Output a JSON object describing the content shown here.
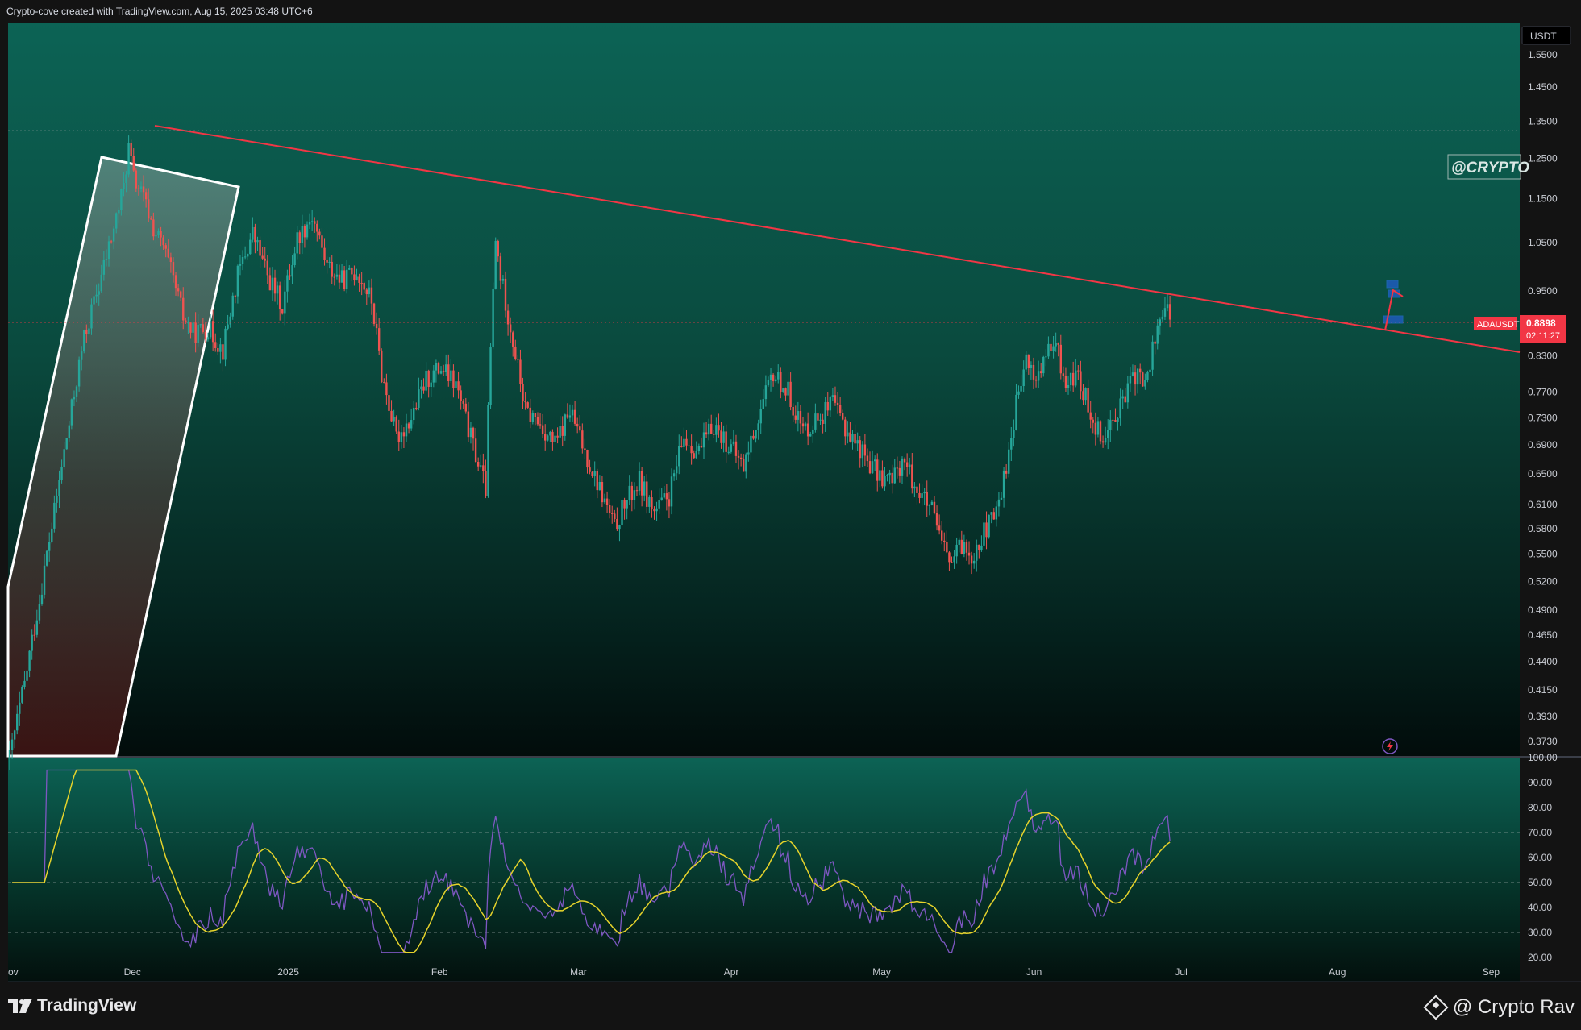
{
  "header": {
    "attribution": "Crypto-cove created with TradingView.com, Aug 15, 2025 03:48 UTC+6"
  },
  "footer": {
    "platform_logo_text": "TradingView",
    "author_text": "@ Crypto Rav"
  },
  "chart_data": [
    {
      "type": "candlestick",
      "symbol": "ADAUSDT",
      "currency_label": "USDT",
      "watermark": "@CRYPTO",
      "last_price": "0.8898",
      "countdown": "02:11:27",
      "y_tick_labels": [
        "1.5500",
        "1.4500",
        "1.3500",
        "1.2500",
        "1.1500",
        "1.0500",
        "0.9500",
        "0.8300",
        "0.7700",
        "0.7300",
        "0.6900",
        "0.6500",
        "0.6100",
        "0.5800",
        "0.5500",
        "0.5200",
        "0.4900",
        "0.4650",
        "0.4400",
        "0.4150",
        "0.3930",
        "0.3730"
      ],
      "x_tick_labels": [
        "ov",
        "Dec",
        "2025",
        "Feb",
        "Mar",
        "Apr",
        "May",
        "Jun",
        "Jul",
        "Aug",
        "Sep"
      ],
      "close_path": [
        [
          0,
          0.36
        ],
        [
          3,
          0.42
        ],
        [
          6,
          0.5
        ],
        [
          9,
          0.6
        ],
        [
          12,
          0.72
        ],
        [
          15,
          0.86
        ],
        [
          18,
          0.96
        ],
        [
          21,
          1.08
        ],
        [
          23,
          1.18
        ],
        [
          24,
          1.28
        ],
        [
          25,
          1.2
        ],
        [
          27,
          1.15
        ],
        [
          29,
          1.08
        ],
        [
          31,
          1.04
        ],
        [
          33,
          0.97
        ],
        [
          35,
          0.9
        ],
        [
          37,
          0.87
        ],
        [
          40,
          0.88
        ],
        [
          43,
          0.84
        ],
        [
          46,
          0.98
        ],
        [
          49,
          1.07
        ],
        [
          52,
          0.98
        ],
        [
          55,
          0.92
        ],
        [
          58,
          1.06
        ],
        [
          61,
          1.11
        ],
        [
          64,
          1.0
        ],
        [
          67,
          0.97
        ],
        [
          70,
          0.99
        ],
        [
          73,
          0.93
        ],
        [
          75,
          0.8
        ],
        [
          78,
          0.7
        ],
        [
          81,
          0.73
        ],
        [
          84,
          0.79
        ],
        [
          87,
          0.81
        ],
        [
          90,
          0.78
        ],
        [
          93,
          0.7
        ],
        [
          96,
          0.63
        ],
        [
          98,
          1.05
        ],
        [
          99,
          0.98
        ],
        [
          101,
          0.88
        ],
        [
          104,
          0.74
        ],
        [
          107,
          0.72
        ],
        [
          110,
          0.69
        ],
        [
          113,
          0.74
        ],
        [
          116,
          0.68
        ],
        [
          119,
          0.63
        ],
        [
          122,
          0.58
        ],
        [
          124,
          0.61
        ],
        [
          127,
          0.64
        ],
        [
          130,
          0.6
        ],
        [
          133,
          0.62
        ],
        [
          136,
          0.7
        ],
        [
          139,
          0.68
        ],
        [
          142,
          0.72
        ],
        [
          145,
          0.69
        ],
        [
          148,
          0.66
        ],
        [
          151,
          0.73
        ],
        [
          154,
          0.8
        ],
        [
          157,
          0.77
        ],
        [
          160,
          0.71
        ],
        [
          163,
          0.73
        ],
        [
          166,
          0.75
        ],
        [
          169,
          0.71
        ],
        [
          172,
          0.68
        ],
        [
          175,
          0.65
        ],
        [
          178,
          0.64
        ],
        [
          180,
          0.67
        ],
        [
          183,
          0.63
        ],
        [
          186,
          0.6
        ],
        [
          188,
          0.56
        ],
        [
          190,
          0.54
        ],
        [
          192,
          0.56
        ],
        [
          194,
          0.55
        ],
        [
          196,
          0.57
        ],
        [
          199,
          0.6
        ],
        [
          201,
          0.66
        ],
        [
          203,
          0.75
        ],
        [
          205,
          0.82
        ],
        [
          207,
          0.79
        ],
        [
          209,
          0.83
        ],
        [
          211,
          0.85
        ],
        [
          213,
          0.78
        ],
        [
          215,
          0.8
        ],
        [
          217,
          0.76
        ],
        [
          219,
          0.72
        ],
        [
          221,
          0.7
        ],
        [
          223,
          0.74
        ],
        [
          225,
          0.76
        ],
        [
          227,
          0.8
        ],
        [
          229,
          0.78
        ],
        [
          231,
          0.86
        ],
        [
          233,
          0.93
        ],
        [
          234,
          0.89
        ]
      ],
      "resistance_line": {
        "from": [
          "Nov 30",
          "1.34"
        ],
        "to": [
          "Sep 1",
          "0.84"
        ]
      },
      "rsi": {
        "y_tick_labels": [
          "100.00",
          "90.00",
          "80.00",
          "70.00",
          "60.00",
          "50.00",
          "40.00",
          "30.00",
          "20.00"
        ],
        "levels": [
          "70",
          "50",
          "30"
        ],
        "series": [
          {
            "color": "#7e57c2"
          },
          {
            "color": "#e6d32b"
          }
        ]
      },
      "colors": {
        "up": "#26a69a",
        "down": "#ef5350",
        "trendline": "#f23645",
        "rsi_line": "#7e57c2",
        "rsi_ma": "#e6d32b"
      }
    }
  ]
}
